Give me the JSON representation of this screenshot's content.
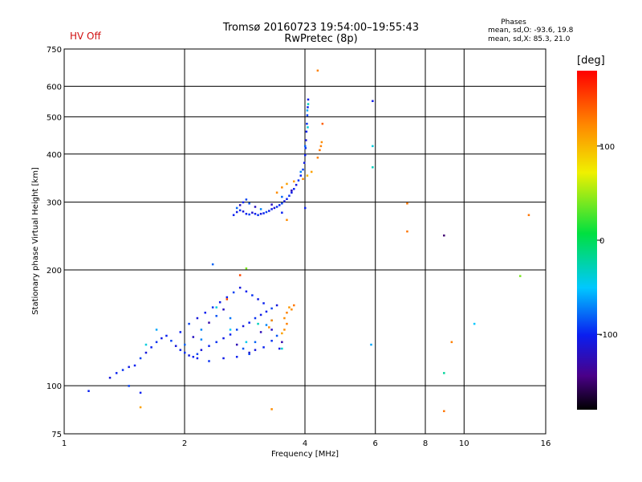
{
  "header": {
    "title_line1": "Tromsø 20160723 19:54:00–19:55:43",
    "title_line2": "RwPretec (8p)",
    "status": "HV Off"
  },
  "phases": {
    "title": "Phases",
    "o_stats": "mean, sd,O: -93.6, 19.8",
    "x_stats": "mean, sd,X: 85.3, 21.0"
  },
  "chart_data": {
    "type": "scatter",
    "xlabel": "Frequency [MHz]",
    "ylabel": "Stationary phase Virtual Height [km]",
    "x_scale": "log",
    "y_scale": "log",
    "xlim": [
      1,
      16
    ],
    "ylim": [
      75,
      750
    ],
    "x_ticks": [
      1,
      2,
      4,
      6,
      8,
      10,
      16
    ],
    "y_ticks": [
      75,
      100,
      200,
      300,
      400,
      500,
      600,
      750
    ],
    "colorbar": {
      "label": "[deg]",
      "range": [
        -180,
        180
      ],
      "ticks": [
        100,
        0,
        -100
      ]
    },
    "series": [
      {
        "description": "O-mode F-layer trace",
        "points": [
          [
            2.65,
            278,
            -100
          ],
          [
            2.7,
            283,
            -105
          ],
          [
            2.75,
            286,
            -95
          ],
          [
            2.8,
            284,
            -110
          ],
          [
            2.85,
            280,
            -100
          ],
          [
            2.9,
            279,
            -90
          ],
          [
            2.95,
            282,
            -115
          ],
          [
            3.0,
            280,
            -100
          ],
          [
            3.05,
            278,
            -95
          ],
          [
            3.1,
            280,
            -110
          ],
          [
            3.15,
            281,
            -100
          ],
          [
            3.2,
            283,
            -90
          ],
          [
            3.25,
            285,
            -105
          ],
          [
            3.3,
            288,
            -100
          ],
          [
            3.35,
            290,
            -115
          ],
          [
            3.4,
            292,
            -95
          ],
          [
            3.45,
            295,
            -100
          ],
          [
            3.5,
            298,
            -90
          ],
          [
            3.55,
            302,
            -110
          ],
          [
            3.6,
            306,
            -100
          ],
          [
            3.65,
            312,
            -95
          ],
          [
            3.7,
            318,
            -105
          ],
          [
            3.75,
            325,
            -100
          ],
          [
            3.8,
            333,
            -110
          ],
          [
            3.85,
            342,
            -95
          ],
          [
            3.9,
            352,
            -100
          ],
          [
            3.95,
            365,
            -90
          ],
          [
            3.98,
            380,
            -105
          ],
          [
            4.0,
            398,
            -100
          ],
          [
            4.01,
            415,
            -95
          ],
          [
            4.02,
            435,
            -110
          ],
          [
            4.03,
            458,
            -100
          ],
          [
            4.04,
            480,
            -95
          ],
          [
            4.05,
            505,
            -90
          ],
          [
            4.06,
            530,
            -100
          ],
          [
            4.07,
            555,
            -105
          ],
          [
            2.7,
            290,
            -80
          ],
          [
            2.75,
            295,
            -120
          ],
          [
            2.8,
            300,
            -100
          ],
          [
            2.85,
            305,
            -90
          ],
          [
            2.9,
            298,
            -85
          ],
          [
            3.0,
            292,
            -120
          ],
          [
            3.1,
            288,
            -70
          ],
          [
            3.3,
            296,
            -120
          ],
          [
            3.5,
            310,
            -80
          ],
          [
            3.7,
            322,
            -125
          ],
          [
            3.9,
            360,
            -70
          ],
          [
            4.0,
            420,
            -80
          ],
          [
            4.05,
            520,
            -60
          ],
          [
            4.06,
            470,
            -40
          ],
          [
            4.07,
            540,
            -30
          ]
        ]
      },
      {
        "description": "X-mode F-layer trace",
        "points": [
          [
            3.5,
            328,
            120
          ],
          [
            3.6,
            335,
            110
          ],
          [
            3.75,
            340,
            115
          ],
          [
            3.95,
            345,
            120
          ],
          [
            4.05,
            352,
            100
          ],
          [
            4.15,
            360,
            110
          ],
          [
            4.3,
            392,
            125
          ],
          [
            4.35,
            410,
            130
          ],
          [
            4.38,
            420,
            125
          ],
          [
            4.4,
            430,
            120
          ],
          [
            4.42,
            480,
            140
          ],
          [
            4.3,
            660,
            125
          ],
          [
            3.6,
            270,
            120
          ]
        ]
      },
      {
        "description": "E-layer and sporadic echoes",
        "points": [
          [
            1.15,
            97,
            -100
          ],
          [
            1.3,
            105,
            -110
          ],
          [
            1.35,
            108,
            -100
          ],
          [
            1.4,
            110,
            -95
          ],
          [
            1.45,
            112,
            -105
          ],
          [
            1.5,
            113,
            -100
          ],
          [
            1.55,
            118,
            -90
          ],
          [
            1.6,
            122,
            -110
          ],
          [
            1.65,
            126,
            -100
          ],
          [
            1.7,
            130,
            -95
          ],
          [
            1.75,
            133,
            -105
          ],
          [
            1.8,
            135,
            -100
          ],
          [
            1.85,
            131,
            -90
          ],
          [
            1.9,
            127,
            -110
          ],
          [
            1.95,
            124,
            -100
          ],
          [
            2.0,
            122,
            -95
          ],
          [
            2.05,
            120,
            -105
          ],
          [
            2.1,
            119,
            -100
          ],
          [
            2.15,
            121,
            -90
          ],
          [
            2.2,
            124,
            -110
          ],
          [
            2.3,
            127,
            -100
          ],
          [
            2.4,
            130,
            -95
          ],
          [
            2.5,
            133,
            -105
          ],
          [
            2.6,
            136,
            -100
          ],
          [
            2.7,
            140,
            -90
          ],
          [
            2.8,
            143,
            -110
          ],
          [
            2.9,
            146,
            -100
          ],
          [
            3.0,
            150,
            -95
          ],
          [
            3.1,
            153,
            -105
          ],
          [
            3.2,
            156,
            -100
          ],
          [
            3.3,
            159,
            -90
          ],
          [
            3.4,
            162,
            -110
          ],
          [
            1.95,
            138,
            -100
          ],
          [
            2.05,
            145,
            -90
          ],
          [
            2.15,
            150,
            -110
          ],
          [
            2.25,
            155,
            -100
          ],
          [
            2.35,
            160,
            -95
          ],
          [
            2.45,
            165,
            -105
          ],
          [
            2.55,
            170,
            -100
          ],
          [
            2.65,
            175,
            -90
          ],
          [
            2.75,
            180,
            -110
          ],
          [
            2.85,
            176,
            -100
          ],
          [
            2.95,
            172,
            -95
          ],
          [
            3.05,
            168,
            -105
          ],
          [
            3.15,
            164,
            -100
          ],
          [
            2.0,
            128,
            -80
          ],
          [
            2.1,
            134,
            -120
          ],
          [
            2.2,
            140,
            -70
          ],
          [
            2.3,
            146,
            -130
          ],
          [
            2.4,
            152,
            -85
          ],
          [
            2.5,
            158,
            -120
          ],
          [
            2.6,
            150,
            -75
          ],
          [
            2.7,
            128,
            -125
          ],
          [
            2.8,
            125,
            -85
          ],
          [
            2.9,
            122,
            -120
          ],
          [
            3.0,
            130,
            -80
          ],
          [
            3.1,
            138,
            -125
          ],
          [
            3.2,
            144,
            -70
          ],
          [
            3.3,
            140,
            -120
          ],
          [
            3.4,
            135,
            -85
          ],
          [
            3.5,
            130,
            -130
          ],
          [
            2.15,
            118,
            -100
          ],
          [
            2.3,
            116,
            -95
          ],
          [
            2.5,
            118,
            -105
          ],
          [
            2.7,
            119,
            -100
          ],
          [
            2.9,
            121,
            -90
          ],
          [
            3.0,
            124,
            -110
          ],
          [
            3.15,
            126,
            -100
          ],
          [
            3.3,
            131,
            -95
          ],
          [
            3.45,
            125,
            -105
          ],
          [
            1.6,
            128,
            -40
          ],
          [
            1.7,
            140,
            -60
          ],
          [
            2.2,
            132,
            -70
          ],
          [
            2.4,
            160,
            -40
          ],
          [
            2.6,
            140,
            -50
          ],
          [
            2.85,
            130,
            -45
          ],
          [
            3.05,
            145,
            -30
          ],
          [
            3.3,
            148,
            -40
          ],
          [
            3.5,
            125,
            -35
          ],
          [
            2.35,
            207,
            -80
          ],
          [
            2.55,
            168,
            150
          ],
          [
            2.75,
            194,
            150
          ],
          [
            2.85,
            202,
            40
          ],
          [
            1.55,
            96,
            -100
          ],
          [
            1.45,
            100,
            -90
          ]
        ]
      },
      {
        "description": "X-mode lower echoes and scattered points",
        "points": [
          [
            3.55,
            150,
            120
          ],
          [
            3.6,
            155,
            125
          ],
          [
            3.65,
            160,
            115
          ],
          [
            3.7,
            158,
            120
          ],
          [
            3.75,
            162,
            130
          ],
          [
            3.6,
            145,
            125
          ],
          [
            3.55,
            140,
            120
          ],
          [
            3.5,
            137,
            110
          ],
          [
            3.3,
            148,
            125
          ],
          [
            3.25,
            142,
            120
          ],
          [
            1.55,
            88,
            110
          ],
          [
            3.3,
            87,
            120
          ],
          [
            3.4,
            318,
            120
          ],
          [
            3.5,
            282,
            -100
          ],
          [
            5.9,
            550,
            -105
          ],
          [
            5.9,
            420,
            -40
          ],
          [
            5.9,
            370,
            -30
          ],
          [
            5.85,
            128,
            -60
          ],
          [
            7.2,
            298,
            130
          ],
          [
            7.2,
            252,
            130
          ],
          [
            8.9,
            246,
            -150
          ],
          [
            8.9,
            108,
            -20
          ],
          [
            8.9,
            86,
            130
          ],
          [
            9.3,
            130,
            125
          ],
          [
            10.6,
            145,
            -50
          ],
          [
            13.8,
            193,
            40
          ],
          [
            14.5,
            278,
            130
          ],
          [
            4.0,
            290,
            -100
          ]
        ]
      }
    ]
  }
}
